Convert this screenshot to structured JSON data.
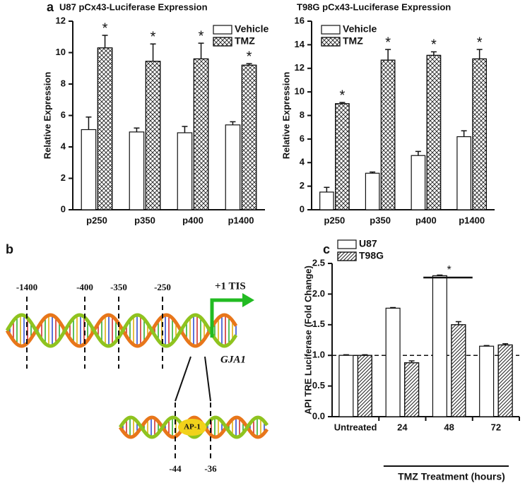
{
  "chart_data": [
    {
      "type": "bar",
      "panel": "a",
      "title": "U87 pCx43-Luciferase Expression",
      "y_label": "Relative Expression",
      "categories": [
        "p250",
        "p350",
        "p400",
        "p1400"
      ],
      "series": [
        {
          "name": "Vehicle",
          "color": "#ffffff",
          "pattern": "none",
          "values": [
            5.1,
            4.95,
            4.9,
            5.4
          ],
          "errors": [
            0.8,
            0.25,
            0.4,
            0.2
          ]
        },
        {
          "name": "TMZ",
          "color": "#ffffff",
          "pattern": "crosshatch",
          "values": [
            10.3,
            9.45,
            9.6,
            9.2
          ],
          "errors": [
            0.8,
            1.1,
            1.0,
            0.1
          ],
          "significance": [
            "*",
            "*",
            "*",
            "*"
          ]
        }
      ],
      "ylim": [
        0,
        12
      ],
      "yticks": [
        0,
        2,
        4,
        6,
        8,
        10,
        12
      ],
      "legend": "upper right"
    },
    {
      "type": "bar",
      "title": "T98G pCx43-Luciferase Expression",
      "y_label": "Relative Expression",
      "categories": [
        "p250",
        "p350",
        "p400",
        "p1400"
      ],
      "series": [
        {
          "name": "Vehicle",
          "color": "#ffffff",
          "pattern": "none",
          "values": [
            1.5,
            3.1,
            4.6,
            6.2
          ],
          "errors": [
            0.4,
            0.1,
            0.35,
            0.5
          ]
        },
        {
          "name": "TMZ",
          "color": "#ffffff",
          "pattern": "crosshatch",
          "values": [
            9.0,
            12.7,
            13.1,
            12.8
          ],
          "errors": [
            0.1,
            0.9,
            0.3,
            0.8
          ],
          "significance": [
            "*",
            "*",
            "*",
            "*"
          ]
        }
      ],
      "ylim": [
        0,
        16
      ],
      "yticks": [
        0,
        2,
        4,
        6,
        8,
        10,
        12,
        14,
        16
      ],
      "legend": "upper left"
    },
    {
      "type": "bar",
      "panel": "c",
      "y_label": "API TRE Luciferase (Fold Change)",
      "x_label": "TMZ Treatment (hours)",
      "categories": [
        "Untreated",
        "24",
        "48",
        "72"
      ],
      "series": [
        {
          "name": "U87",
          "color": "#ffffff",
          "pattern": "none",
          "values": [
            1.0,
            1.77,
            2.3,
            1.15
          ],
          "errors": [
            0.01,
            0.01,
            0.01,
            0.01
          ]
        },
        {
          "name": "T98G",
          "color": "#ffffff",
          "pattern": "diagonal",
          "values": [
            1.0,
            0.88,
            1.5,
            1.17
          ],
          "errors": [
            0.01,
            0.03,
            0.05,
            0.02
          ]
        }
      ],
      "ylim": [
        0,
        2.5
      ],
      "yticks": [
        {
          "value": 0,
          "label": "0.0"
        },
        {
          "value": 0.5,
          "label": "0.5"
        },
        {
          "value": 1,
          "label": "1.0"
        },
        {
          "value": 1.5,
          "label": "1.5"
        },
        {
          "value": 2,
          "label": "2.0"
        },
        {
          "value": 2.5,
          "label": "2.5"
        }
      ],
      "reference_line": 1.0,
      "annotation": "*",
      "legend": "upper left"
    }
  ],
  "diagram": {
    "panel": "b",
    "positions": [
      "-1400",
      "-400",
      "-350",
      "-250"
    ],
    "tss": "+1 TIS",
    "gene": "GJA1",
    "factor": "AP-1",
    "site": [
      "-44",
      "-36"
    ]
  }
}
